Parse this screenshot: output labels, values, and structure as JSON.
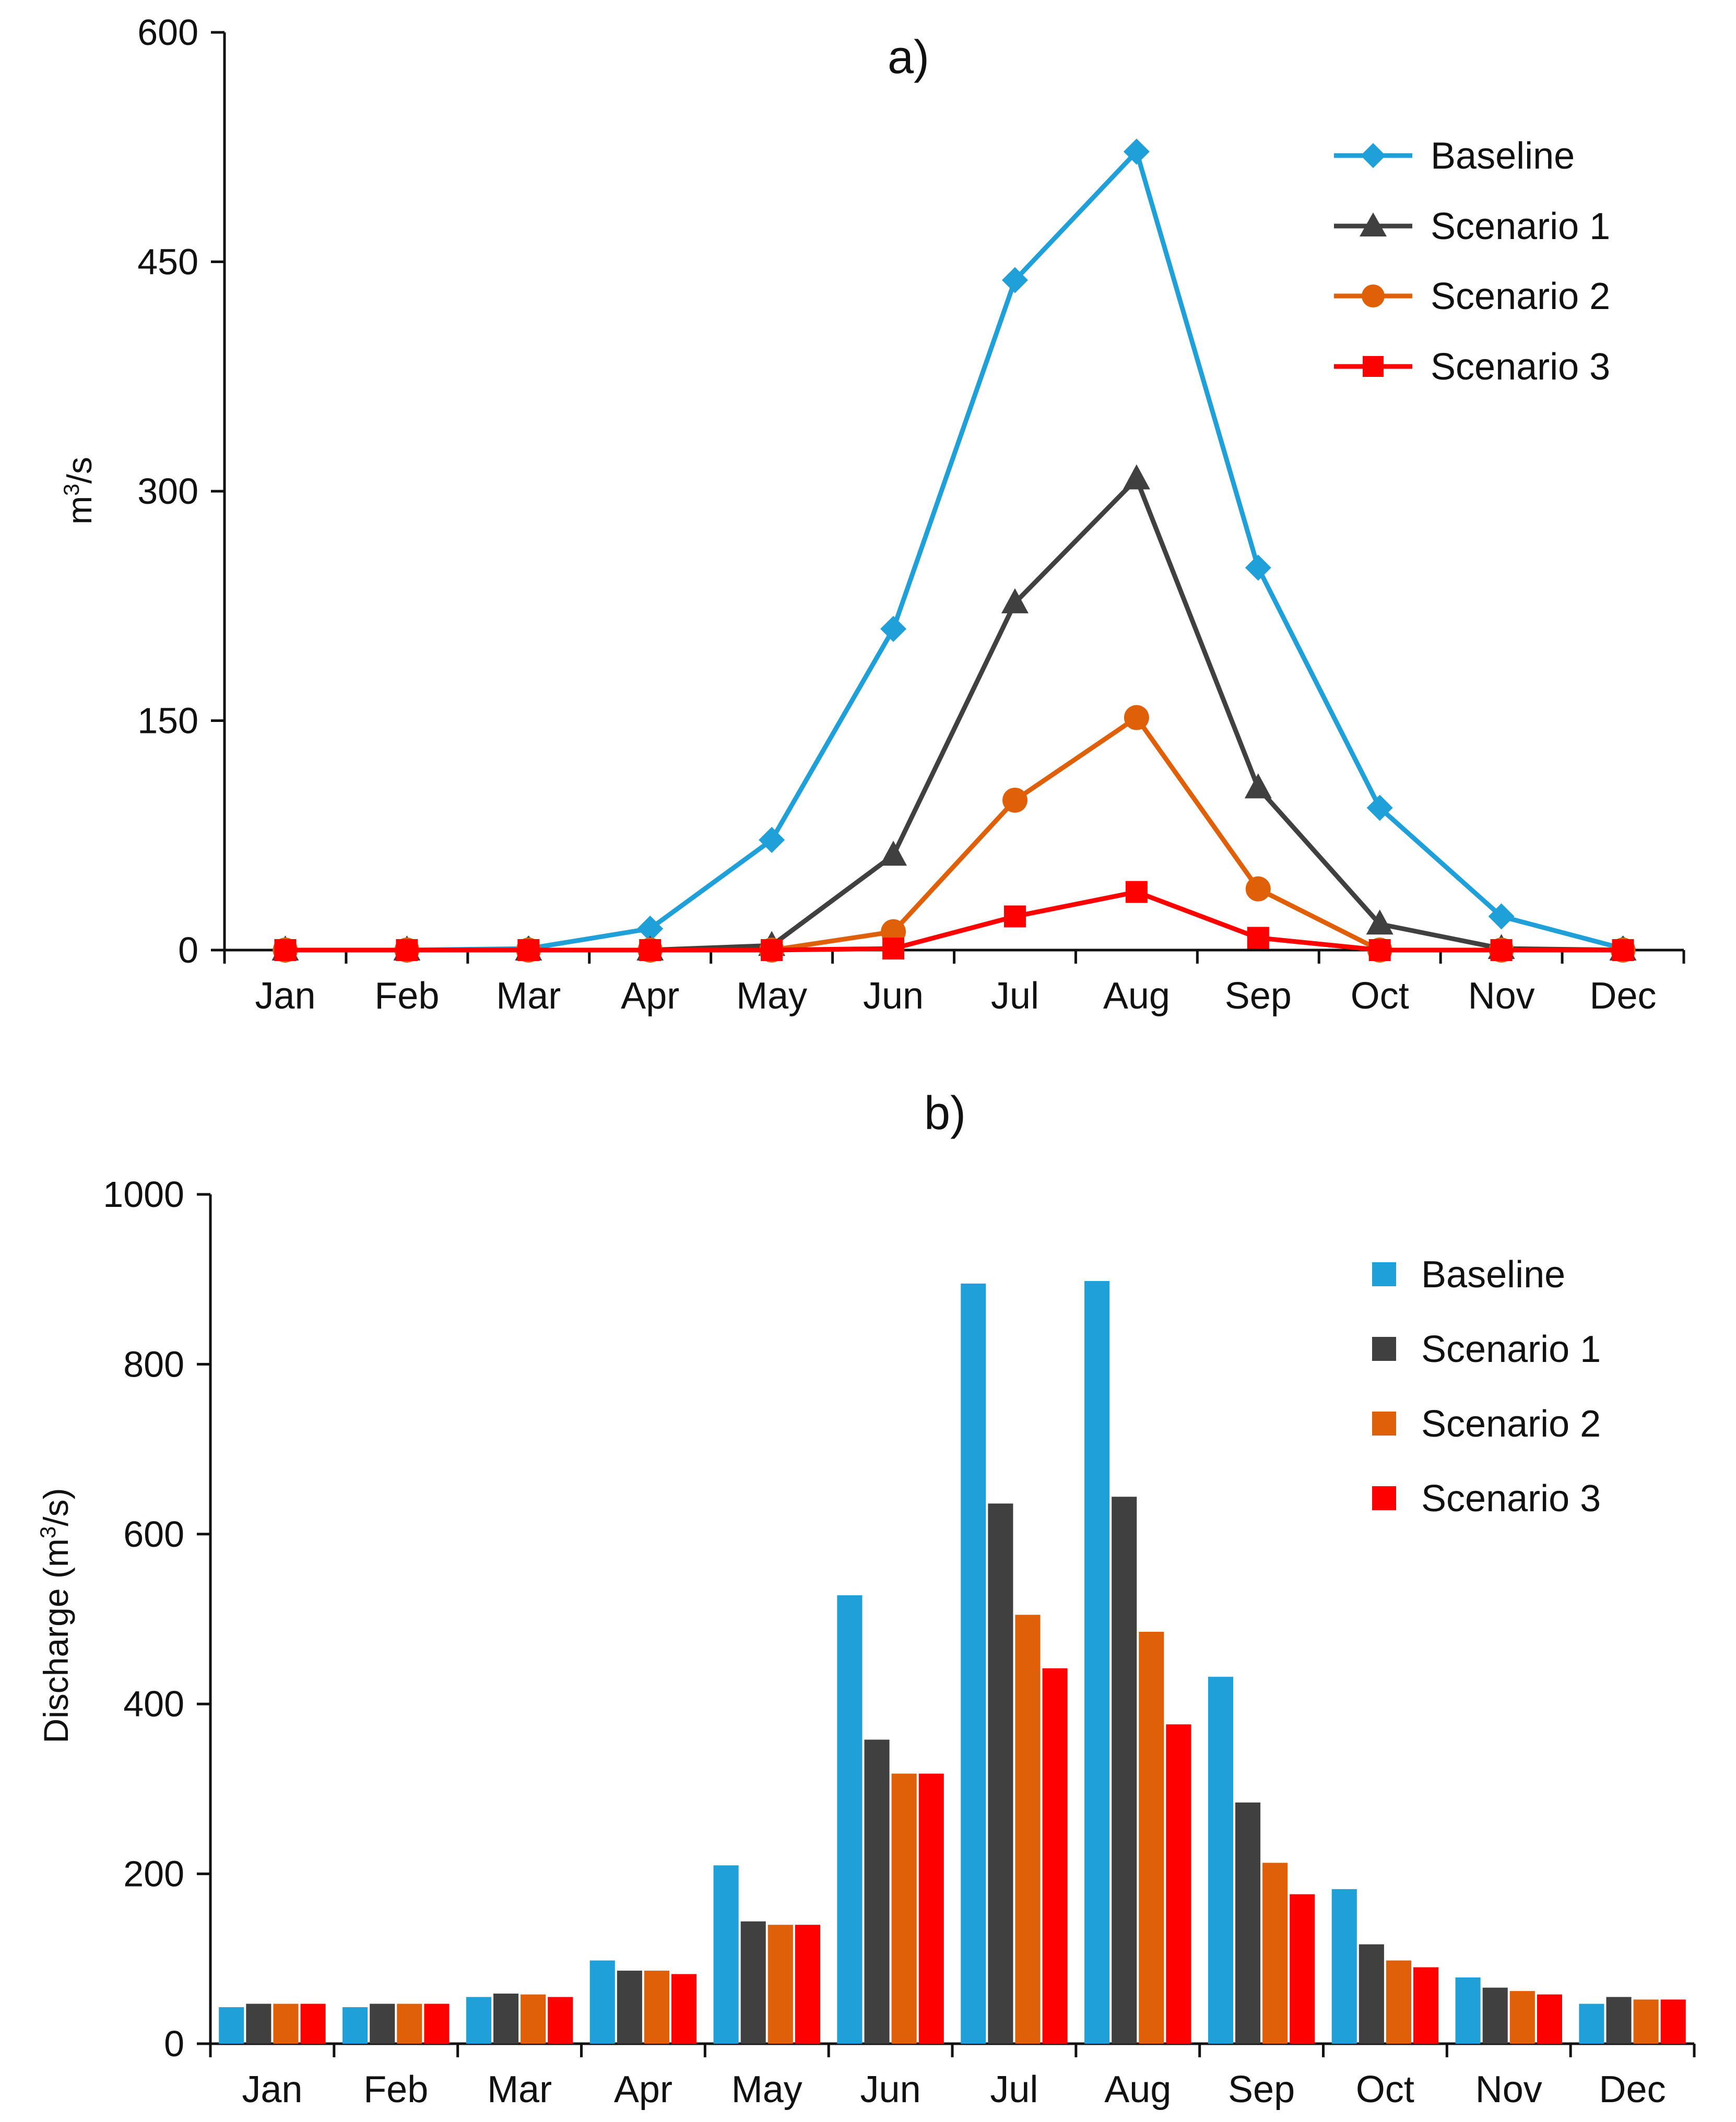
{
  "chart_data": [
    {
      "type": "line",
      "title": "a)",
      "xlabel": "",
      "ylabel": "m³/s",
      "ylim": [
        0,
        600
      ],
      "yticks": [
        0,
        150,
        300,
        450,
        600
      ],
      "grid": false,
      "legend_position": "top-right",
      "categories": [
        "Jan",
        "Feb",
        "Mar",
        "Apr",
        "May",
        "Jun",
        "Jul",
        "Aug",
        "Sep",
        "Oct",
        "Nov",
        "Dec"
      ],
      "series": [
        {
          "name": "Baseline",
          "color": "#1FA0D8",
          "marker": "diamond",
          "values": [
            0,
            0,
            1,
            14,
            72,
            210,
            438,
            522,
            250,
            93,
            22,
            1
          ]
        },
        {
          "name": "Scenario 1",
          "color": "#404040",
          "marker": "triangle",
          "values": [
            0,
            0,
            0,
            0,
            3,
            62,
            227,
            308,
            106,
            17,
            1,
            0
          ]
        },
        {
          "name": "Scenario 2",
          "color": "#E0600A",
          "marker": "circle",
          "values": [
            0,
            0,
            0,
            0,
            0,
            12,
            98,
            152,
            40,
            0,
            0,
            0
          ]
        },
        {
          "name": "Scenario 3",
          "color": "#FF0000",
          "marker": "square",
          "values": [
            0,
            0,
            0,
            0,
            0,
            1,
            22,
            38,
            8,
            0,
            0,
            0
          ]
        }
      ]
    },
    {
      "type": "bar",
      "title": "b)",
      "xlabel": "",
      "ylabel": "Discharge (m³/s)",
      "ylim": [
        0,
        1000
      ],
      "yticks": [
        0,
        200,
        400,
        600,
        800,
        1000
      ],
      "grid": false,
      "legend_position": "top-right",
      "categories": [
        "Jan",
        "Feb",
        "Mar",
        "Apr",
        "May",
        "Jun",
        "Jul",
        "Aug",
        "Sep",
        "Oct",
        "Nov",
        "Dec"
      ],
      "series": [
        {
          "name": "Baseline",
          "color": "#1FA0D8",
          "values": [
            43,
            43,
            55,
            98,
            210,
            528,
            895,
            898,
            432,
            182,
            78,
            47
          ]
        },
        {
          "name": "Scenario 1",
          "color": "#404040",
          "values": [
            47,
            47,
            59,
            86,
            144,
            358,
            636,
            644,
            284,
            117,
            66,
            55
          ]
        },
        {
          "name": "Scenario 2",
          "color": "#E0600A",
          "values": [
            47,
            47,
            58,
            86,
            140,
            318,
            505,
            485,
            213,
            98,
            62,
            52
          ]
        },
        {
          "name": "Scenario 3",
          "color": "#FF0000",
          "values": [
            47,
            47,
            55,
            82,
            140,
            318,
            442,
            376,
            176,
            90,
            58,
            52
          ]
        }
      ]
    }
  ]
}
